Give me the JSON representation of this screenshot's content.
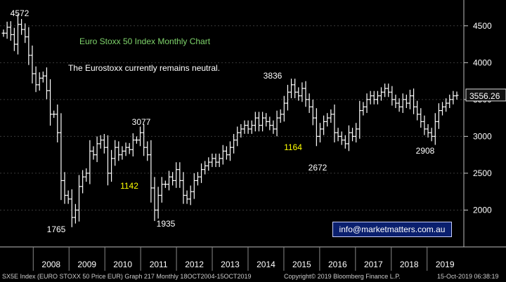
{
  "chart_data": {
    "type": "ohlc",
    "title": "Euro Stoxx 50 Index Monthly Chart",
    "subtitle": "The Eurostoxx currently remains neutral.",
    "title_color": "#7fd46b",
    "bar_color": "#ffffff",
    "ylim": [
      1500,
      4850
    ],
    "y_ticks": [
      2000,
      2500,
      3000,
      3500,
      4000,
      4500
    ],
    "y_tick_labels": [
      "2000",
      "2500",
      "3000",
      "3500",
      "4000",
      "4500"
    ],
    "x_labels": [
      "2008",
      "2009",
      "2010",
      "2011",
      "2012",
      "2013",
      "2014",
      "2015",
      "2016",
      "2017",
      "2018",
      "2019"
    ],
    "last_value": 3556.26,
    "last_value_label": "3556.26",
    "annotations": [
      {
        "text": "4572",
        "date": 2007.4,
        "value": 4572,
        "color": "#ffffff"
      },
      {
        "text": "1765",
        "date": 2009.2,
        "value": 1765,
        "color": "#ffffff"
      },
      {
        "text": "3077",
        "date": 2011.2,
        "value": 3077,
        "color": "#ffffff"
      },
      {
        "text": "1142",
        "date": 2010.8,
        "value": 1142,
        "color": "#ffff00"
      },
      {
        "text": "1935",
        "date": 2011.7,
        "value": 1935,
        "color": "#ffffff"
      },
      {
        "text": "3836",
        "date": 2015.3,
        "value": 3836,
        "color": "#ffffff"
      },
      {
        "text": "1164",
        "date": 2015.3,
        "value": 1164,
        "color": "#ffff00"
      },
      {
        "text": "2672",
        "date": 2016.2,
        "value": 2672,
        "color": "#ffffff"
      },
      {
        "text": "2908",
        "date": 2018.5,
        "value": 2908,
        "color": "#ffffff"
      }
    ],
    "series_close": [
      4400,
      4480,
      4380,
      4250,
      4520,
      4450,
      4350,
      4100,
      3850,
      3700,
      3790,
      3820,
      3620,
      3300,
      3300,
      3050,
      2400,
      2200,
      2150,
      1900,
      2000,
      2320,
      2450,
      2500,
      2800,
      2750,
      2900,
      2950,
      2850,
      2500,
      2700,
      2850,
      2750,
      2800,
      2850,
      2820,
      2950,
      2950,
      3050,
      2850,
      2750,
      2300,
      2000,
      2200,
      2350,
      2350,
      2450,
      2400,
      2550,
      2400,
      2200,
      2150,
      2250,
      2400,
      2450,
      2550,
      2600,
      2650,
      2700,
      2650,
      2700,
      2800,
      2750,
      2850,
      2950,
      3050,
      3100,
      3150,
      3100,
      3150,
      3250,
      3150,
      3250,
      3200,
      3150,
      3100,
      3250,
      3300,
      3450,
      3600,
      3700,
      3600,
      3550,
      3650,
      3500,
      3400,
      3250,
      3000,
      3100,
      3200,
      3250,
      3300,
      3050,
      3000,
      2950,
      2900,
      3050,
      3000,
      3100,
      3350,
      3400,
      3500,
      3550,
      3500,
      3550,
      3600,
      3650,
      3600,
      3500,
      3450,
      3400,
      3500,
      3450,
      3550,
      3400,
      3300,
      3200,
      3100,
      3050,
      3000,
      3200,
      3350,
      3400,
      3450,
      3500,
      3550,
      3556.26
    ]
  },
  "footer": {
    "left": "SX5E Index (EURO STOXX 50 Price EUR) Graph 217  Monthly 18OCT2004-15OCT2019",
    "middle": "Copyright© 2019 Bloomberg Finance L.P.",
    "right": "15-Oct-2019 06:38:19"
  },
  "email": "info@marketmatters.com.au"
}
